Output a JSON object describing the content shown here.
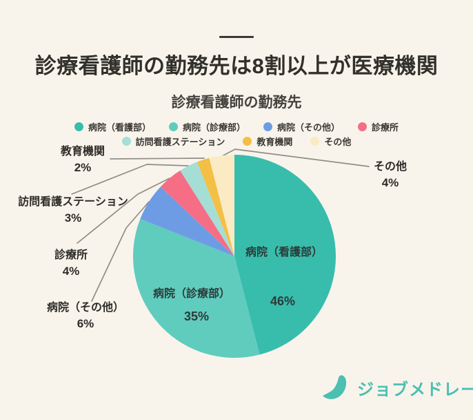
{
  "page": {
    "background_color": "#F8F4EC"
  },
  "header": {
    "title": "診療看護師の勤務先は8割以上が医療機関"
  },
  "chart": {
    "title": "診療看護師の勤務先"
  },
  "chart_data": {
    "type": "pie",
    "title": "診療看護師の勤務先",
    "unit": "%",
    "start_angle_deg": 0,
    "direction": "clockwise",
    "value_label_format": "{value}%",
    "segments": [
      {
        "label": "病院（看護部）",
        "value": 46,
        "color": "#38BDAC",
        "label_placement": "inside"
      },
      {
        "label": "病院（診療部）",
        "value": 35,
        "color": "#60CCBE",
        "label_placement": "inside"
      },
      {
        "label": "病院（その他）",
        "value": 6,
        "color": "#6E9CE4",
        "label_placement": "callout-left"
      },
      {
        "label": "診療所",
        "value": 4,
        "color": "#F56E86",
        "label_placement": "callout-left"
      },
      {
        "label": "訪問看護ステーション",
        "value": 3,
        "color": "#A5DED5",
        "label_placement": "callout-left"
      },
      {
        "label": "教育機関",
        "value": 2,
        "color": "#F3BF45",
        "label_placement": "callout-left"
      },
      {
        "label": "その他",
        "value": 4,
        "color": "#FAEBC4",
        "label_placement": "callout-right"
      }
    ],
    "legend": {
      "position": "top",
      "rows": [
        [
          0,
          1,
          2,
          3
        ],
        [
          4,
          5,
          6
        ]
      ]
    }
  },
  "footer": {
    "logo_text": "ジョブメドレー",
    "logo_color": "#4BBFB0"
  }
}
